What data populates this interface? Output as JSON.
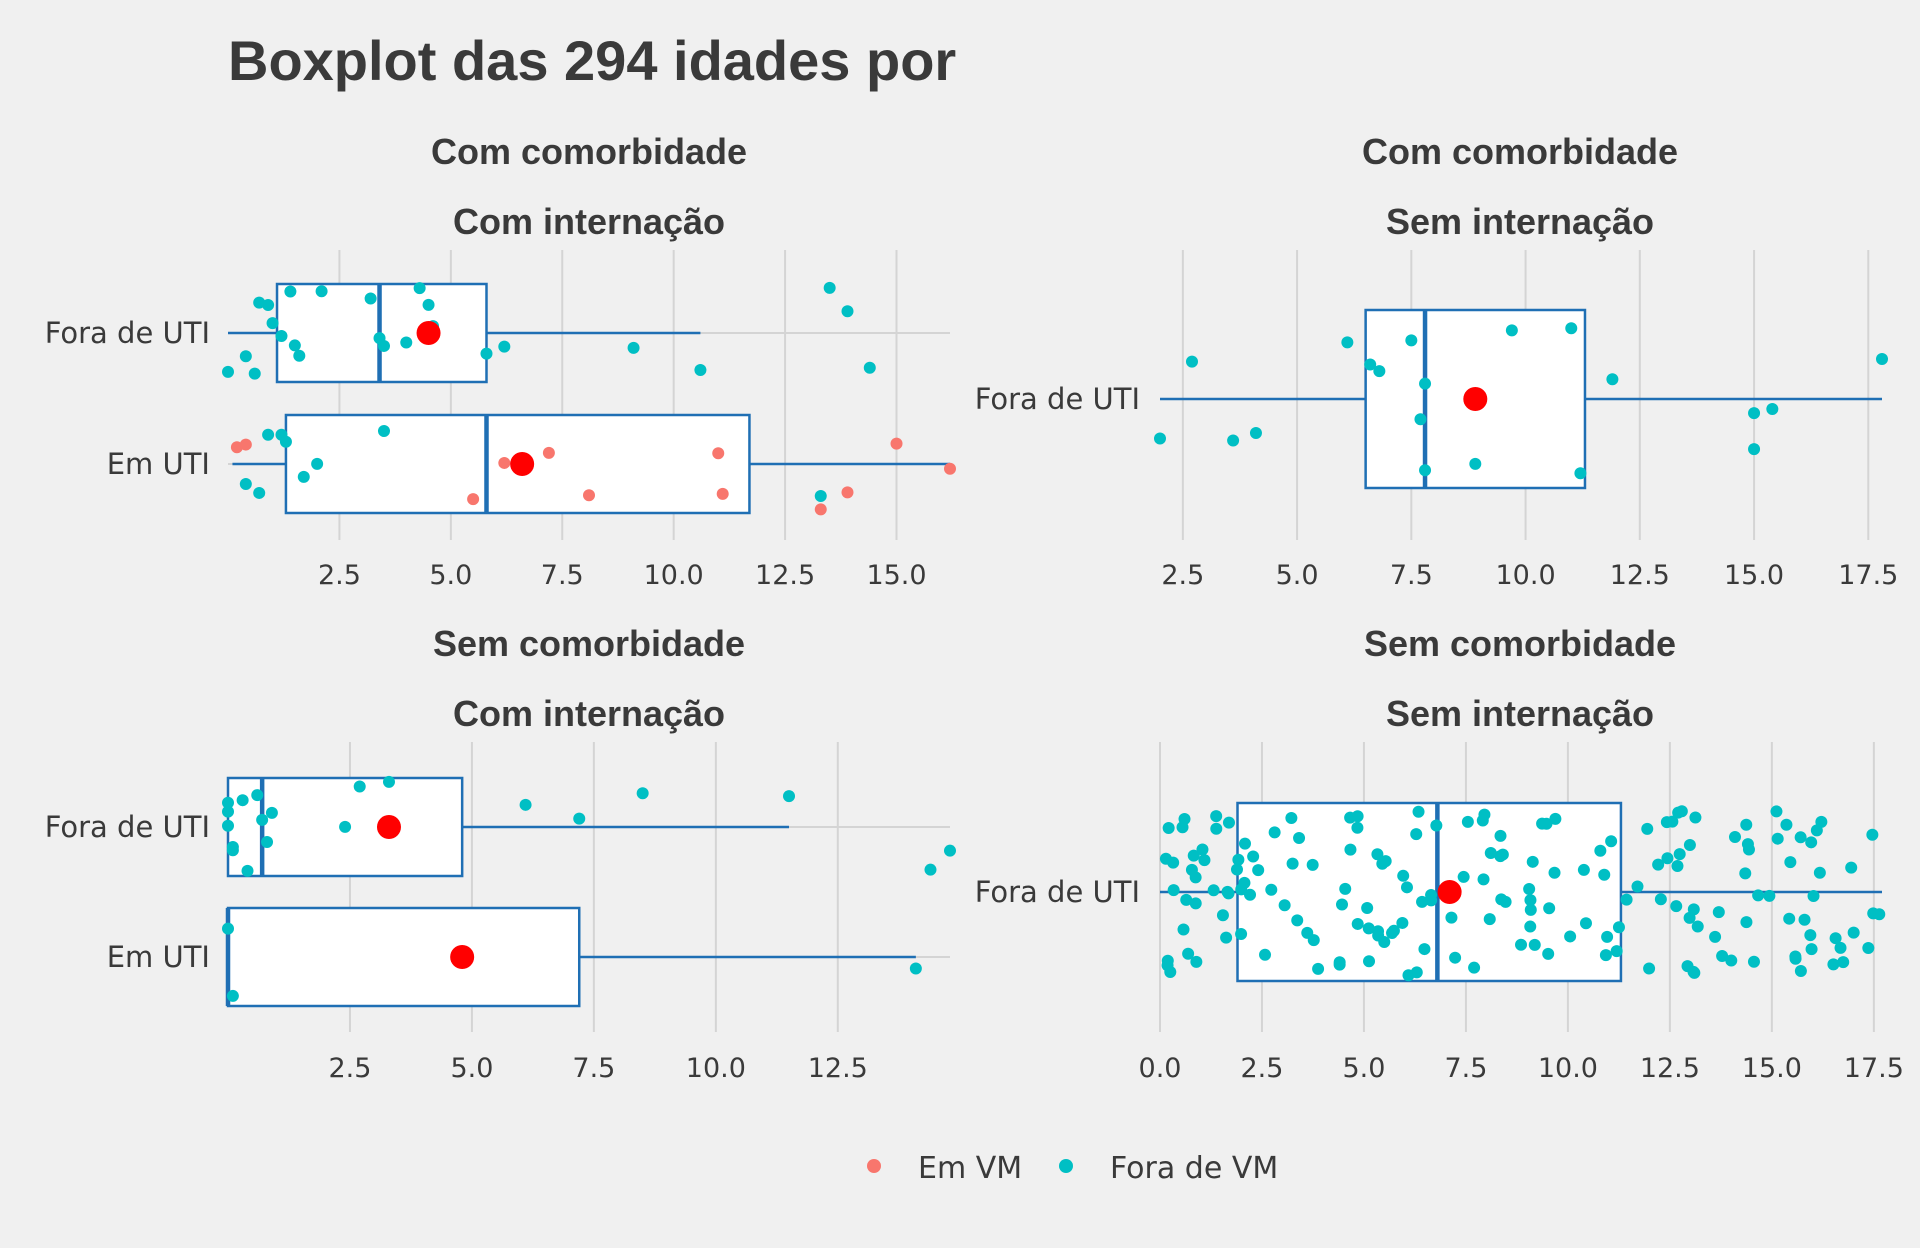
{
  "title": "Boxplot das 294 idades por",
  "legend": [
    {
      "label": "Em VM",
      "color": "#f8766d"
    },
    {
      "label": "Fora de VM",
      "color": "#00bfc4"
    }
  ],
  "colors": {
    "box_border": "#1f6fb4",
    "box_fill": "#ffffff",
    "mean_point": "#ff0000",
    "grid": "#d4d4d4",
    "background": "#f0f0f0"
  },
  "chart_data": [
    {
      "type": "boxplot",
      "strip": [
        "Com comorbidade",
        "Com internação"
      ],
      "xlim": [
        0,
        16.2
      ],
      "xticks": [
        "2.5",
        "5.0",
        "7.5",
        "10.0",
        "12.5",
        "15.0"
      ],
      "xtick_values": [
        2.5,
        5.0,
        7.5,
        10.0,
        12.5,
        15.0
      ],
      "categories": [
        "Fora de UTI",
        "Em UTI"
      ],
      "boxes": [
        {
          "category": "Fora de UTI",
          "whisker_low": 0.0,
          "q1": 1.1,
          "median": 3.4,
          "q3": 5.8,
          "whisker_high": 10.6,
          "mean": 4.5
        },
        {
          "category": "Em UTI",
          "whisker_low": 0.1,
          "q1": 1.3,
          "median": 5.8,
          "q3": 11.7,
          "whisker_high": 16.2,
          "mean": 6.6
        }
      ],
      "points": [
        {
          "category": "Fora de UTI",
          "group": "Fora de VM",
          "values": [
            0.0,
            0.4,
            0.6,
            0.7,
            0.9,
            1.0,
            1.2,
            1.4,
            1.5,
            1.6,
            2.1,
            3.2,
            3.4,
            3.5,
            4.0,
            4.3,
            4.5,
            4.6,
            5.8,
            6.2,
            9.1,
            10.6,
            13.5,
            13.9,
            14.4
          ]
        },
        {
          "category": "Em UTI",
          "group": "Em VM",
          "values": [
            0.2,
            0.4,
            5.5,
            6.2,
            7.2,
            8.1,
            11.0,
            11.1,
            13.3,
            13.9,
            15.0,
            16.2
          ]
        },
        {
          "category": "Em UTI",
          "group": "Fora de VM",
          "values": [
            0.4,
            0.7,
            0.9,
            1.2,
            1.3,
            1.7,
            2.0,
            3.5,
            13.3
          ]
        }
      ]
    },
    {
      "type": "boxplot",
      "strip": [
        "Com comorbidade",
        "Sem internação"
      ],
      "xlim": [
        2.0,
        17.8
      ],
      "xticks": [
        "2.5",
        "5.0",
        "7.5",
        "10.0",
        "12.5",
        "15.0",
        "17.5"
      ],
      "xtick_values": [
        2.5,
        5.0,
        7.5,
        10.0,
        12.5,
        15.0,
        17.5
      ],
      "categories": [
        "Fora de UTI"
      ],
      "boxes": [
        {
          "category": "Fora de UTI",
          "whisker_low": 2.0,
          "q1": 6.5,
          "median": 7.8,
          "q3": 11.3,
          "whisker_high": 17.8,
          "mean": 8.9
        }
      ],
      "points": [
        {
          "category": "Fora de UTI",
          "group": "Fora de VM",
          "values": [
            2.0,
            2.7,
            3.6,
            4.1,
            6.1,
            6.6,
            6.8,
            7.5,
            7.7,
            7.8,
            7.8,
            8.9,
            9.7,
            11.0,
            11.2,
            11.9,
            15.0,
            15.0,
            15.4,
            17.8
          ]
        }
      ]
    },
    {
      "type": "boxplot",
      "strip": [
        "Sem comorbidade",
        "Com internação"
      ],
      "xlim": [
        0,
        14.8
      ],
      "xticks": [
        "2.5",
        "5.0",
        "7.5",
        "10.0",
        "12.5"
      ],
      "xtick_values": [
        2.5,
        5.0,
        7.5,
        10.0,
        12.5
      ],
      "categories": [
        "Fora de UTI",
        "Em UTI"
      ],
      "boxes": [
        {
          "category": "Fora de UTI",
          "whisker_low": 0.0,
          "q1": 0.0,
          "median": 0.7,
          "q3": 4.8,
          "whisker_high": 11.5,
          "mean": 3.3
        },
        {
          "category": "Em UTI",
          "whisker_low": 0.0,
          "q1": 0.0,
          "median": 0.0,
          "q3": 7.2,
          "whisker_high": 14.1,
          "mean": 4.8
        }
      ],
      "points": [
        {
          "category": "Fora de UTI",
          "group": "Fora de VM",
          "values": [
            0.0,
            0.0,
            0.0,
            0.1,
            0.1,
            0.3,
            0.4,
            0.6,
            0.7,
            0.8,
            0.9,
            2.4,
            2.7,
            3.3,
            6.1,
            7.2,
            8.5,
            11.5,
            14.4,
            14.8
          ]
        },
        {
          "category": "Em UTI",
          "group": "Fora de VM",
          "values": [
            0.0,
            0.1,
            14.1
          ]
        }
      ]
    },
    {
      "type": "boxplot",
      "strip": [
        "Sem comorbidade",
        "Sem internação"
      ],
      "xlim": [
        0,
        17.7
      ],
      "xticks": [
        "0.0",
        "2.5",
        "5.0",
        "7.5",
        "10.0",
        "12.5",
        "15.0",
        "17.5"
      ],
      "xtick_values": [
        0.0,
        2.5,
        5.0,
        7.5,
        10.0,
        12.5,
        15.0,
        17.5
      ],
      "categories": [
        "Fora de UTI"
      ],
      "boxes": [
        {
          "category": "Fora de UTI",
          "whisker_low": 0.0,
          "q1": 1.9,
          "median": 6.8,
          "q3": 11.3,
          "whisker_high": 17.7,
          "mean": 7.1
        }
      ],
      "points": [
        {
          "category": "Fora de UTI",
          "group": "Fora de VM",
          "count": 180,
          "range": [
            0,
            17.7
          ]
        }
      ]
    }
  ]
}
